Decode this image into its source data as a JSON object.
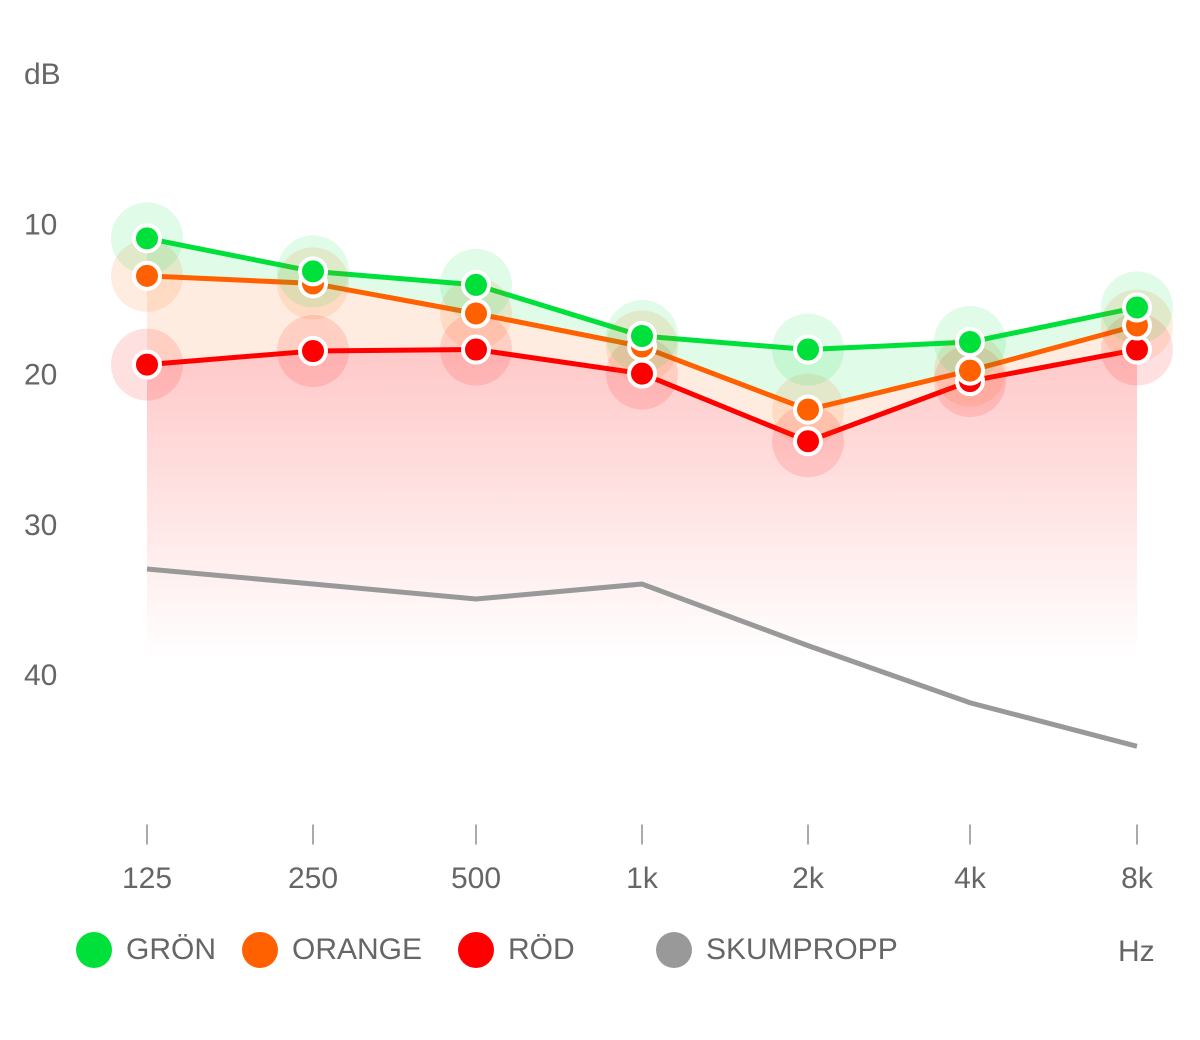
{
  "chart_data": {
    "type": "line",
    "title": "",
    "xlabel": "Hz",
    "ylabel": "dB",
    "categories": [
      "125",
      "250",
      "500",
      "1k",
      "2k",
      "4k",
      "8k"
    ],
    "yticks": [
      10,
      20,
      30,
      40
    ],
    "ylim": [
      0,
      50
    ],
    "y_inverted": true,
    "grid": true,
    "legend_position": "bottom",
    "series": [
      {
        "name": "GRÖN",
        "color": "#00e03a",
        "values": [
          11.0,
          13.2,
          14.1,
          17.5,
          18.4,
          17.9,
          15.6
        ]
      },
      {
        "name": "ORANGE",
        "color": "#ff6000",
        "values": [
          13.5,
          14.0,
          16.0,
          18.2,
          22.4,
          19.8,
          16.8
        ]
      },
      {
        "name": "RÖD",
        "color": "#ff0000",
        "values": [
          19.4,
          18.5,
          18.4,
          20.0,
          24.5,
          20.5,
          18.4
        ]
      },
      {
        "name": "SKUMPROPP",
        "color": "#999999",
        "values": [
          33.0,
          34.0,
          35.0,
          34.0,
          38.1,
          41.9,
          44.8
        ]
      }
    ]
  }
}
